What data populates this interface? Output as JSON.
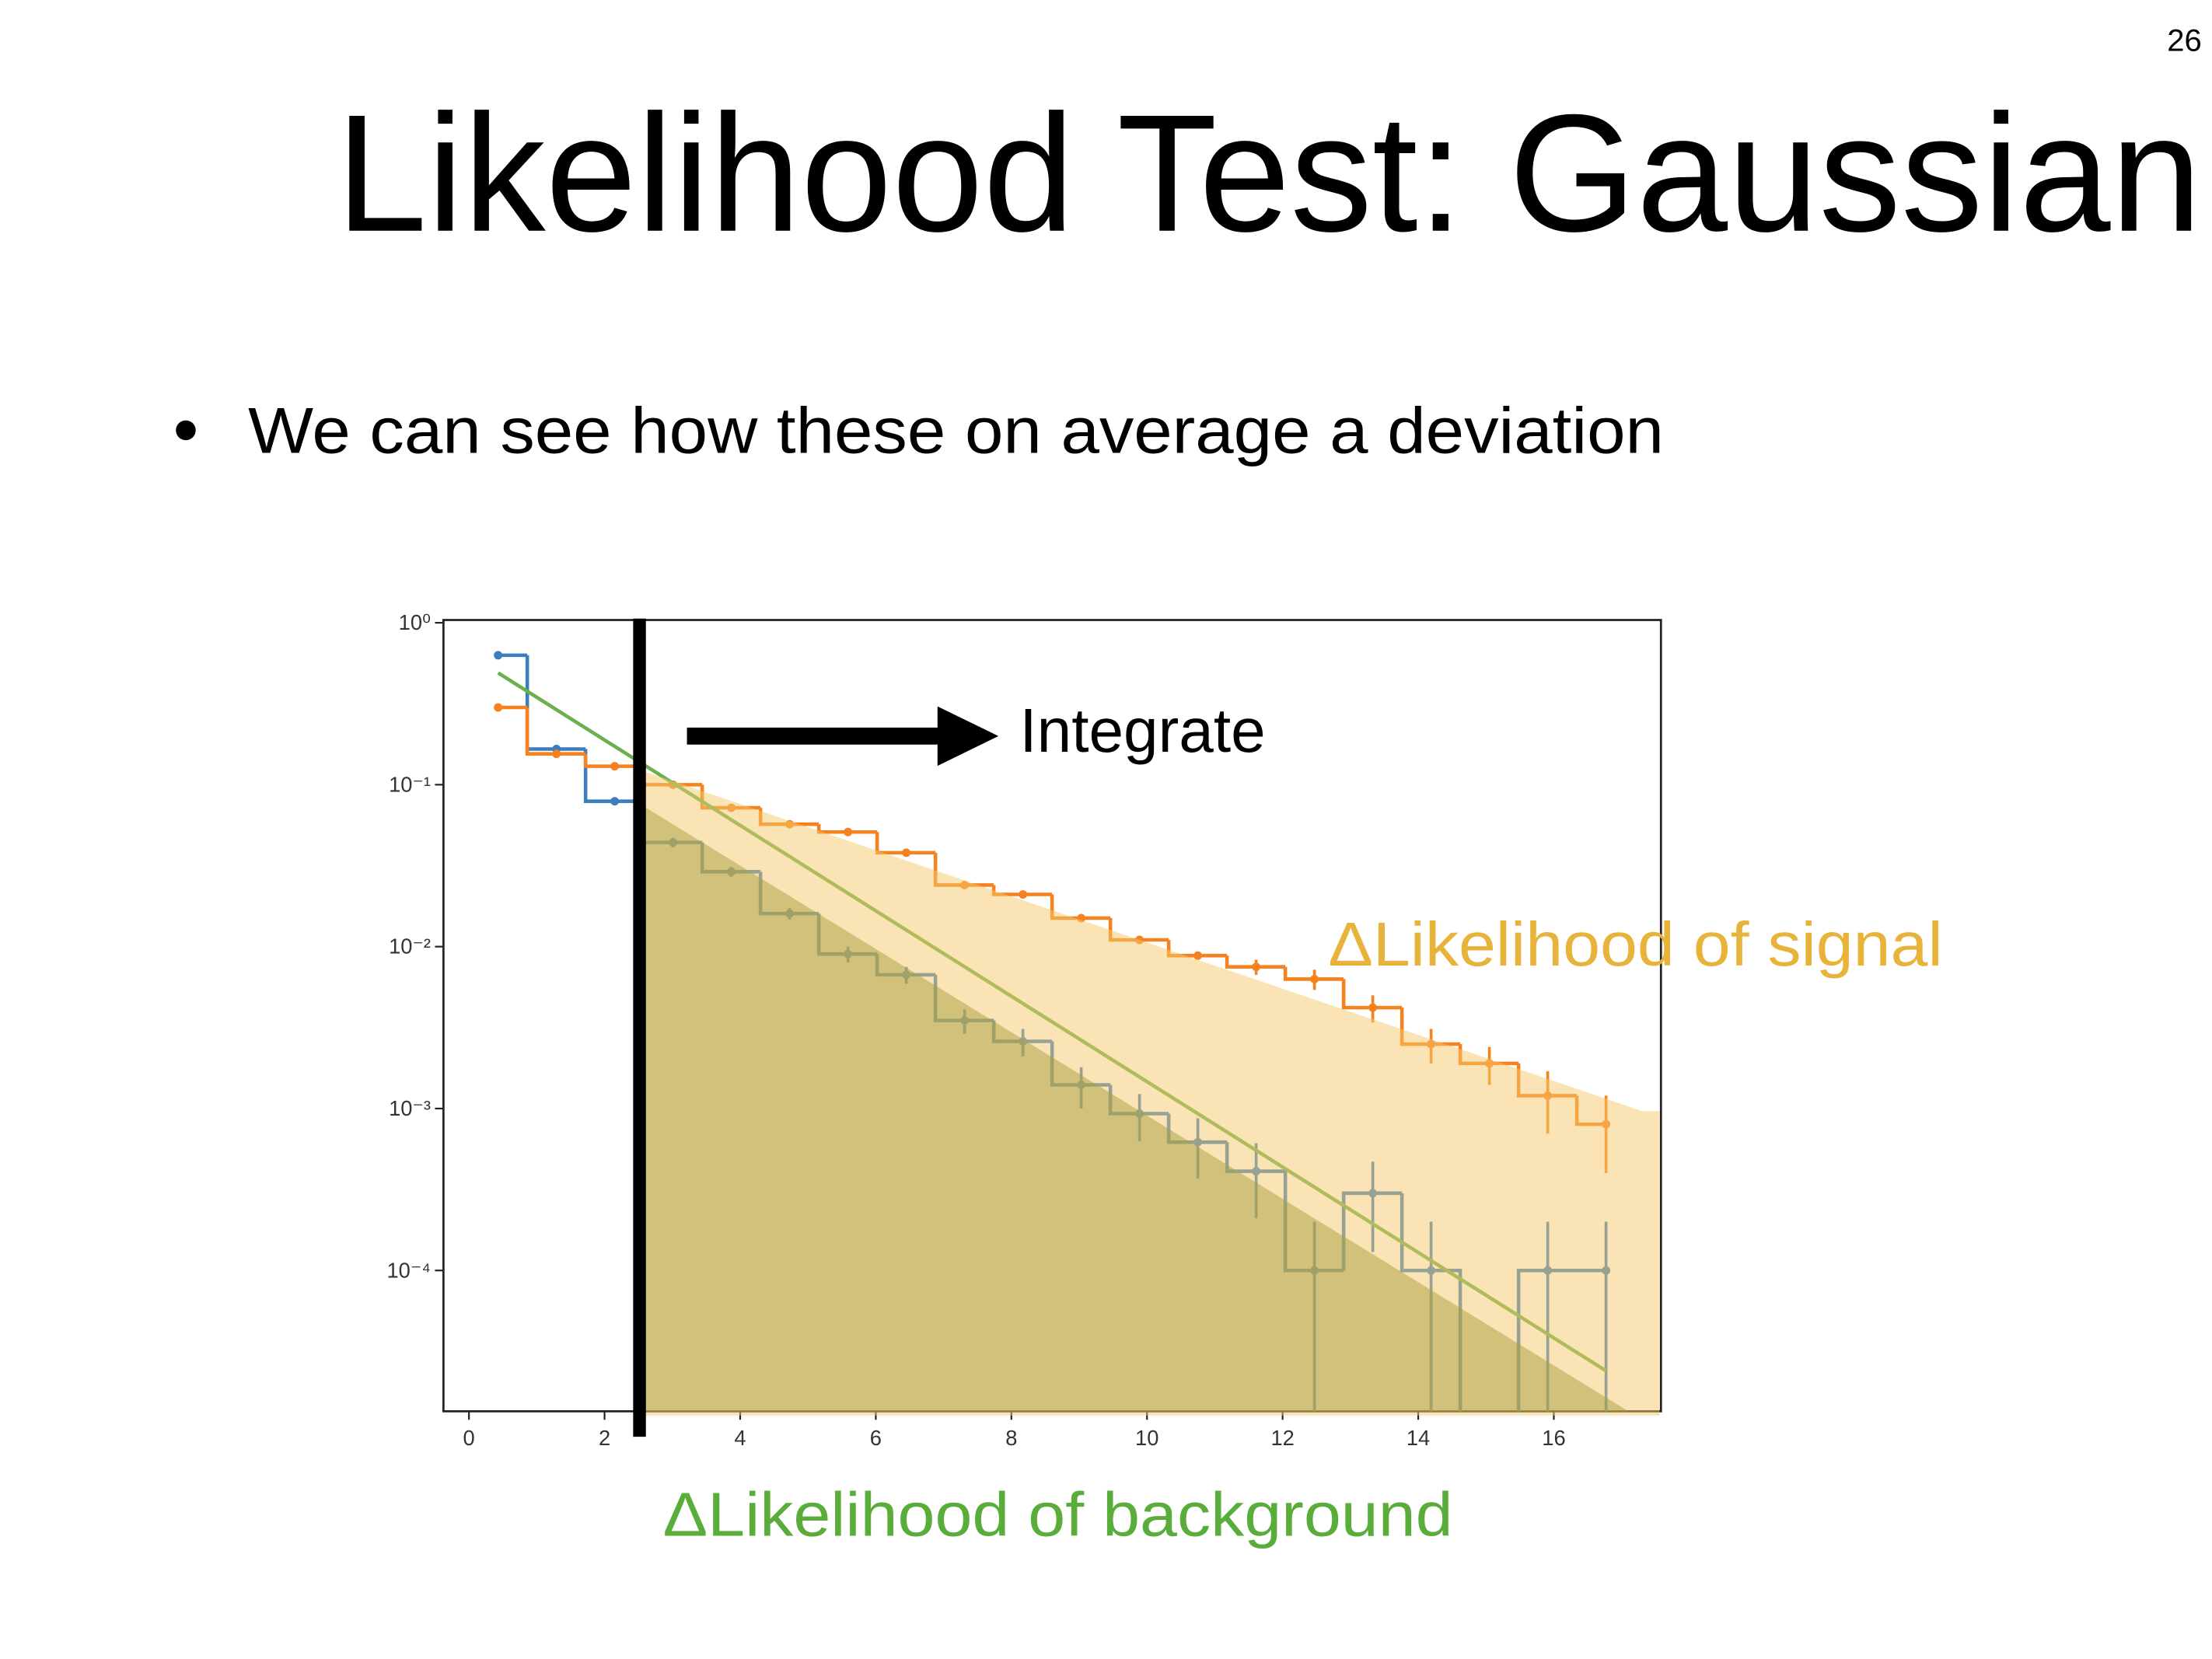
{
  "slide": {
    "page_number": "26",
    "title": "Likelihood Test: Gaussian",
    "bullet": "We can see how these on average a deviation"
  },
  "chart_data": {
    "type": "step",
    "x": [
      0.43,
      1.29,
      2.15,
      3.01,
      3.87,
      4.73,
      5.59,
      6.45,
      7.31,
      8.17,
      9.03,
      9.89,
      10.75,
      11.61,
      12.47,
      13.33,
      14.19,
      15.05,
      15.91,
      16.77
    ],
    "xlim": [
      -0.376,
      17.58
    ],
    "xticks": [
      0,
      2,
      4,
      6,
      8,
      10,
      12,
      14,
      16
    ],
    "ylim": [
      1.35e-05,
      1.04
    ],
    "yticks": [
      {
        "value": 0.0001,
        "label": "10⁻⁴"
      },
      {
        "value": 0.001,
        "label": "10⁻³"
      },
      {
        "value": 0.01,
        "label": "10⁻²"
      },
      {
        "value": 0.1,
        "label": "10⁻¹"
      },
      {
        "value": 1,
        "label": "10⁰"
      }
    ],
    "log_y": true,
    "series": [
      {
        "color": "#3b7dbd",
        "values": [
          0.63,
          0.166,
          0.079,
          0.044,
          0.029,
          0.016,
          0.009,
          0.0067,
          0.0035,
          0.0026,
          0.0014,
          0.00093,
          0.00062,
          0.00041,
          0.0001,
          0.0003,
          0.0001,
          null,
          0.0001,
          0.0001
        ],
        "errors": [
          0.01,
          0.006,
          0.004,
          0.003,
          0.002,
          0.0013,
          0.001,
          0.0008,
          0.0006,
          0.0005,
          0.0004,
          0.0003,
          0.00025,
          0.0002,
          0.0001,
          0.00017,
          0.0001,
          null,
          0.0001,
          0.0001
        ]
      },
      {
        "color": "#f5821f",
        "values": [
          0.3,
          0.155,
          0.13,
          0.1,
          0.072,
          0.057,
          0.051,
          0.038,
          0.024,
          0.021,
          0.015,
          0.011,
          0.0088,
          0.0075,
          0.0063,
          0.0042,
          0.0025,
          0.0019,
          0.0012,
          0.0008
        ],
        "errors": [
          0.005,
          0.004,
          0.003,
          0.003,
          0.002,
          0.002,
          0.0015,
          0.0012,
          0.001,
          0.0008,
          0.0007,
          0.0006,
          0.0005,
          0.0008,
          0.0009,
          0.0008,
          0.0006,
          0.0005,
          0.0005,
          0.0004
        ]
      },
      {
        "type": "line",
        "color": "#6ab04c",
        "x": [
          0.43,
          16.77
        ],
        "values": [
          0.49,
          2.4e-05
        ]
      }
    ],
    "annotations": [
      "Integrate",
      "ΔLikelihood of signal",
      "ΔLikelihood of background"
    ]
  }
}
